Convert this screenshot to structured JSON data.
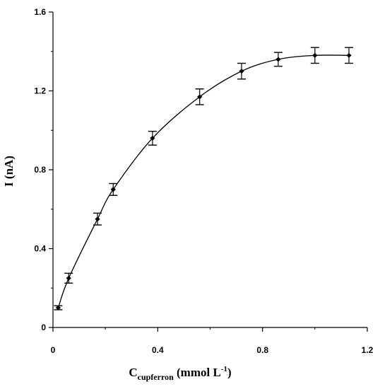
{
  "chart_data": {
    "type": "scatter",
    "title": "",
    "xlabel": {
      "main": "C",
      "subscript": "cupferron",
      "unit_prefix": "(mmol L",
      "superscript": "-1",
      "unit_suffix": ")"
    },
    "ylabel": "I (nA)",
    "xlim": [
      0,
      1.2
    ],
    "ylim": [
      0,
      1.6
    ],
    "x_ticks": [
      "0",
      "0.4",
      "0.8",
      "1.2"
    ],
    "y_ticks": [
      "0",
      "0.4",
      "0.8",
      "1.2",
      "1.6"
    ],
    "x_tick_values": [
      0,
      0.4,
      0.8,
      1.2
    ],
    "y_tick_values": [
      0,
      0.4,
      0.8,
      1.2,
      1.6
    ],
    "grid": false,
    "legend": "none",
    "series": [
      {
        "x": [
          0.02,
          0.06,
          0.17,
          0.23,
          0.38,
          0.56,
          0.72,
          0.86,
          1.0,
          1.13
        ],
        "y": [
          0.1,
          0.25,
          0.55,
          0.7,
          0.96,
          1.17,
          1.3,
          1.36,
          1.38,
          1.38
        ],
        "error": [
          0.01,
          0.025,
          0.03,
          0.03,
          0.035,
          0.04,
          0.04,
          0.035,
          0.04,
          0.04
        ],
        "marker": "diamond",
        "fit": "smooth-curve"
      }
    ],
    "colors": {
      "axis": "#000000",
      "series": "#000000"
    }
  }
}
